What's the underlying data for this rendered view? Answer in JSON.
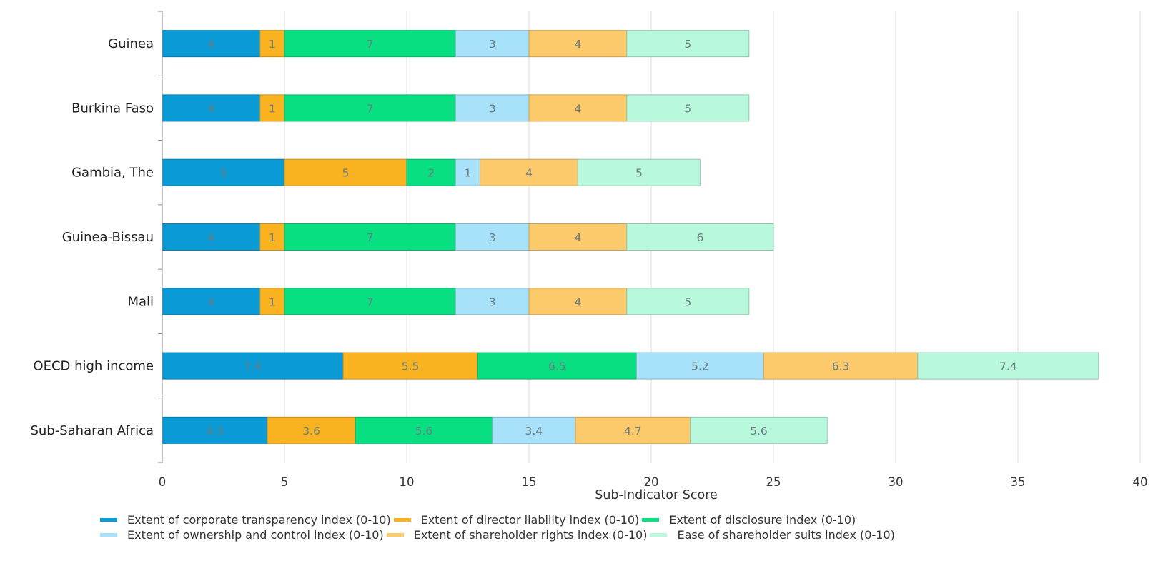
{
  "chart_data": {
    "type": "bar",
    "orientation": "horizontal",
    "stacked": true,
    "categories": [
      "Guinea",
      "Burkina Faso",
      "Gambia, The",
      "Guinea-Bissau",
      "Mali",
      "OECD high income",
      "Sub-Saharan Africa"
    ],
    "series": [
      {
        "name": "Extent of corporate transparency index (0-10)",
        "color": "#0a9ad6",
        "values": [
          4,
          4,
          5,
          4,
          4,
          7.4,
          4.3
        ],
        "labels": [
          "4",
          "4",
          "5",
          "4",
          "4",
          "7.4",
          "4.3"
        ]
      },
      {
        "name": "Extent of director liability index (0-10)",
        "color": "#f9b321",
        "values": [
          1,
          1,
          5,
          1,
          1,
          5.5,
          3.6
        ],
        "labels": [
          "1",
          "1",
          "5",
          "1",
          "1",
          "5.5",
          "3.6"
        ]
      },
      {
        "name": "Extent of disclosure index (0-10)",
        "color": "#08df80",
        "values": [
          7,
          7,
          2,
          7,
          7,
          6.5,
          5.6
        ],
        "labels": [
          "7",
          "7",
          "2",
          "7",
          "7",
          "6.5",
          "5.6"
        ]
      },
      {
        "name": "Extent of ownership and control index (0-10)",
        "color": "#a8e2fa",
        "values": [
          3,
          3,
          1,
          3,
          3,
          5.2,
          3.4
        ],
        "labels": [
          "3",
          "3",
          "1",
          "3",
          "3",
          "5.2",
          "3.4"
        ]
      },
      {
        "name": "Extent of shareholder rights index (0-10)",
        "color": "#fdca6b",
        "values": [
          4,
          4,
          4,
          4,
          4,
          6.3,
          4.7
        ],
        "labels": [
          "4",
          "4",
          "4",
          "4",
          "4",
          "6.3",
          "4.7"
        ]
      },
      {
        "name": "Ease of shareholder suits index (0-10)",
        "color": "#b8f8dc",
        "values": [
          5,
          5,
          5,
          6,
          5,
          7.4,
          5.6
        ],
        "labels": [
          "5",
          "5",
          "5",
          "6",
          "5",
          "7.4",
          "5.6"
        ]
      }
    ],
    "xlabel": "Sub-Indicator Score",
    "ylabel": "",
    "xlim": [
      0,
      40
    ],
    "xticks": [
      "0",
      "5",
      "10",
      "15",
      "20",
      "25",
      "30",
      "35",
      "40"
    ],
    "grid": true,
    "legend_position": "bottom"
  }
}
